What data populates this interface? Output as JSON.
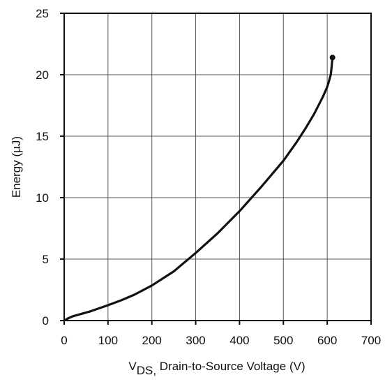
{
  "chart_data": {
    "type": "line",
    "title": "",
    "xlabel": {
      "prefix": "V",
      "subscript": "DS,",
      "rest": " Drain-to-Source Voltage (V)"
    },
    "ylabel": "Energy (µJ)",
    "xlim": [
      0,
      700
    ],
    "ylim": [
      0,
      25
    ],
    "xticks": [
      0,
      100,
      200,
      300,
      400,
      500,
      600,
      700
    ],
    "yticks": [
      0,
      5,
      10,
      15,
      20,
      25
    ],
    "grid": true,
    "series": [
      {
        "color": "#111111",
        "x": [
          0,
          10,
          20,
          30,
          40,
          60,
          80,
          100,
          130,
          160,
          200,
          250,
          300,
          350,
          400,
          450,
          500,
          530,
          550,
          570,
          590,
          600,
          605,
          608,
          610,
          612
        ],
        "y": [
          0,
          0.2,
          0.35,
          0.45,
          0.55,
          0.75,
          1.0,
          1.25,
          1.65,
          2.1,
          2.85,
          4.0,
          5.5,
          7.1,
          8.9,
          10.9,
          13.0,
          14.5,
          15.6,
          16.8,
          18.2,
          19.0,
          19.6,
          20.0,
          20.6,
          21.4
        ]
      }
    ]
  }
}
